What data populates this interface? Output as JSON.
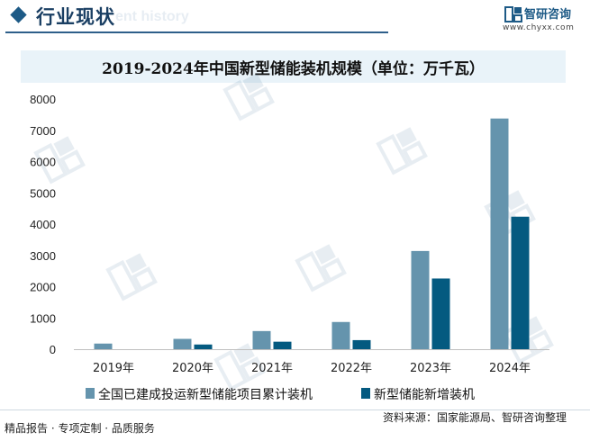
{
  "header": {
    "title": "行业现状",
    "ghost_text": "ent history"
  },
  "brand": {
    "name": "智研咨询",
    "url": "www.chyxx.com"
  },
  "chart_data": {
    "type": "bar",
    "title": "2019-2024年中国新型储能装机规模（单位：万千瓦）",
    "categories": [
      "2019年",
      "2020年",
      "2021年",
      "2022年",
      "2023年",
      "2024年"
    ],
    "series": [
      {
        "name": "全国已建成投运新型储能项目累计装机",
        "values": [
          180,
          330,
          580,
          870,
          3140,
          7376
        ],
        "color": "#6594ad"
      },
      {
        "name": "新型储能新增装机",
        "values": [
          0,
          150,
          240,
          290,
          2260,
          4237
        ],
        "color": "#045a80"
      }
    ],
    "ylim": [
      0,
      8000
    ],
    "yticks": [
      0,
      1000,
      2000,
      3000,
      4000,
      5000,
      6000,
      7000,
      8000
    ],
    "grid": false,
    "legend_position": "bottom"
  },
  "footer": {
    "left": "精品报告 · 专项定制 · 品质服务",
    "source": "资料来源：国家能源局、智研咨询整理"
  },
  "colors": {
    "accent": "#1d5a86",
    "title_band": "#e9f3f9"
  }
}
